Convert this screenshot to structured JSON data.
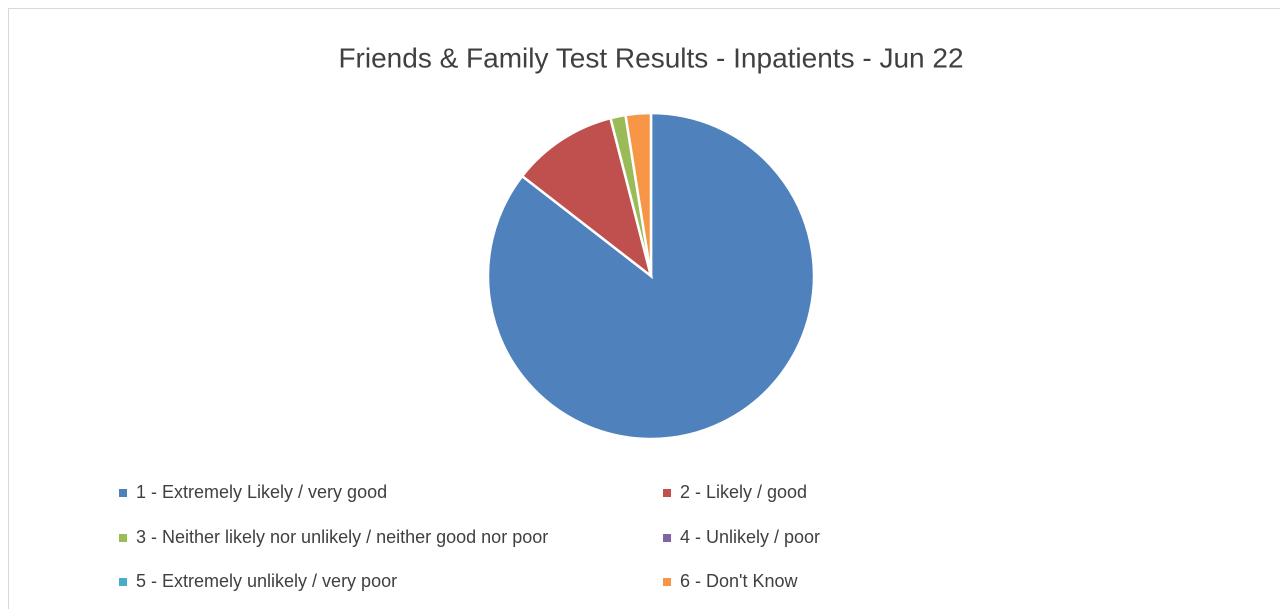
{
  "chart_data": {
    "type": "pie",
    "title": "Friends & Family Test Results - Inpatients - Jun 22",
    "categories": [
      "1 - Extremely Likely / very good",
      "2 - Likely / good",
      "3 - Neither likely nor unlikely / neither good nor poor",
      "4 - Unlikely / poor",
      "5 - Extremely unlikely / very poor",
      "6 - Don't Know"
    ],
    "values": [
      85.5,
      10.5,
      1.5,
      0,
      0,
      2.5
    ],
    "colors": [
      "#4f81bd",
      "#c0504d",
      "#9bbb59",
      "#8064a2",
      "#4bacc6",
      "#f79646"
    ],
    "legend": "bottom"
  }
}
